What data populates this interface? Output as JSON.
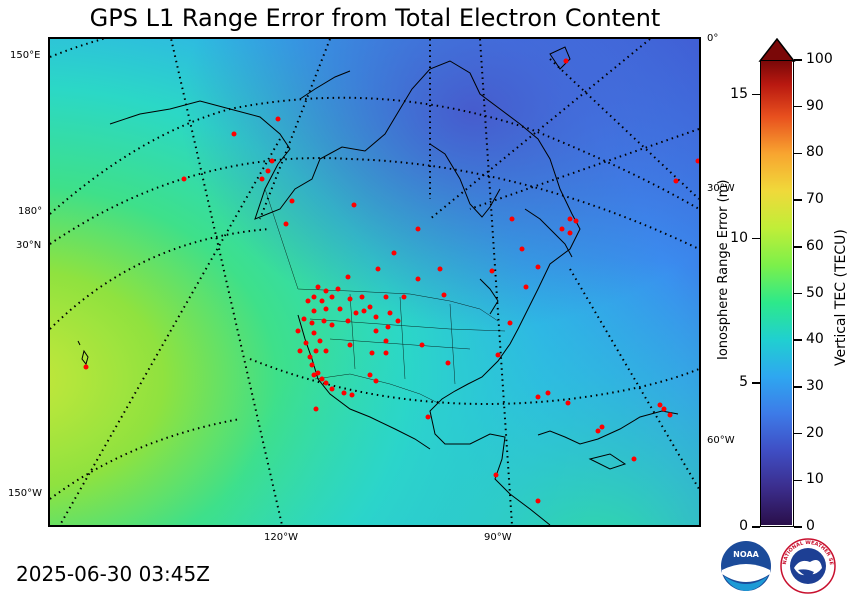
{
  "title": "GPS L1 Range Error from Total Electron Content",
  "timestamp": "2025-06-30 03:45Z",
  "map": {
    "graticule_labels": {
      "lat_150E": "150°E",
      "lon_180": "180°",
      "lat_30N": "30°N",
      "lon_150W": "150°W",
      "lon_120W": "120°W",
      "lon_90W": "90°W",
      "lon_0": "0°",
      "lon_30W": "30°W",
      "lon_60W": "60°W"
    },
    "colors": {
      "background_low": "#3aa0f0",
      "background_mid": "#2bd3c8",
      "background_high": "#b6e23a",
      "stations": "#ff0000"
    }
  },
  "colorbar": {
    "left_label": "Ionosphere Range Error (m)",
    "right_label": "Vertical TEC (TECU)",
    "left_ticks": [
      "0",
      "5",
      "10",
      "15"
    ],
    "right_ticks": [
      "0",
      "10",
      "20",
      "30",
      "40",
      "50",
      "60",
      "70",
      "80",
      "90",
      "100"
    ],
    "range_tecu": [
      0,
      100
    ],
    "range_m": [
      0,
      16.2
    ],
    "extend": "max"
  },
  "logos": {
    "noaa": "NOAA",
    "nws_ring": "NATIONAL WEATHER SERVICE"
  }
}
